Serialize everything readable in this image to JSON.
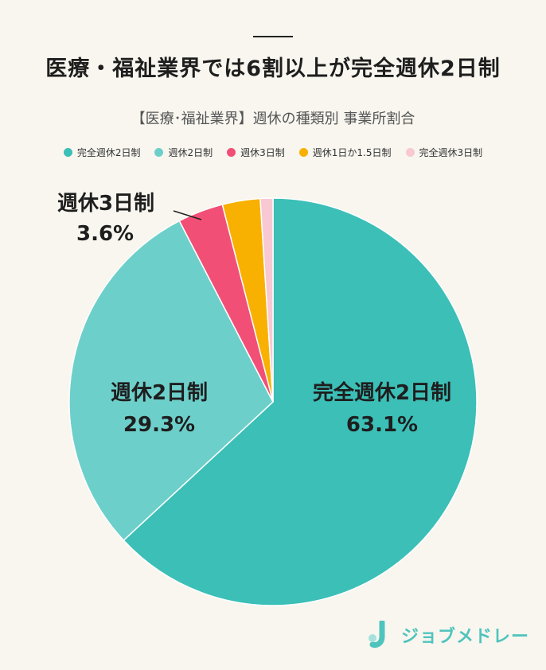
{
  "headline": "医療・福祉業界では6割以上が完全週休2日制",
  "logo": {
    "text": "ジョブメドレー"
  },
  "chart_data": {
    "type": "pie",
    "title": "【医療･福祉業界】週休の種類別 事業所割合",
    "legend_position": "top",
    "slices": [
      {
        "name": "完全週休2日制",
        "value": 63.1,
        "label": "63.1%",
        "color": "#3bbfb7"
      },
      {
        "name": "週休2日制",
        "value": 29.3,
        "label": "29.3%",
        "color": "#6dcfca"
      },
      {
        "name": "週休3日制",
        "value": 3.6,
        "label": "3.6%",
        "color": "#f24f76"
      },
      {
        "name": "週休1日か1.5日制",
        "value": 3.0,
        "label": "",
        "color": "#f8b100"
      },
      {
        "name": "完全週休3日制",
        "value": 1.0,
        "label": "",
        "color": "#f8c8d3"
      }
    ]
  }
}
